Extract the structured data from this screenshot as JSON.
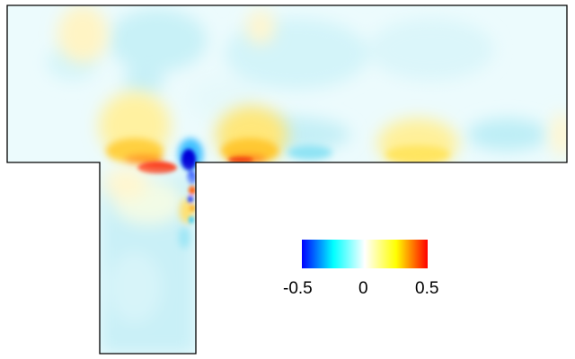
{
  "colorbar": {
    "min_label": "-0.5",
    "mid_label": "0",
    "max_label": "0.5",
    "range": [
      -0.5,
      0.5
    ],
    "colors": [
      "#0000ff",
      "#00ffff",
      "#ffffff",
      "#ffff00",
      "#ff0000"
    ]
  },
  "geometry_style": {
    "outline_color": "#000000",
    "background": "#ffffff"
  }
}
